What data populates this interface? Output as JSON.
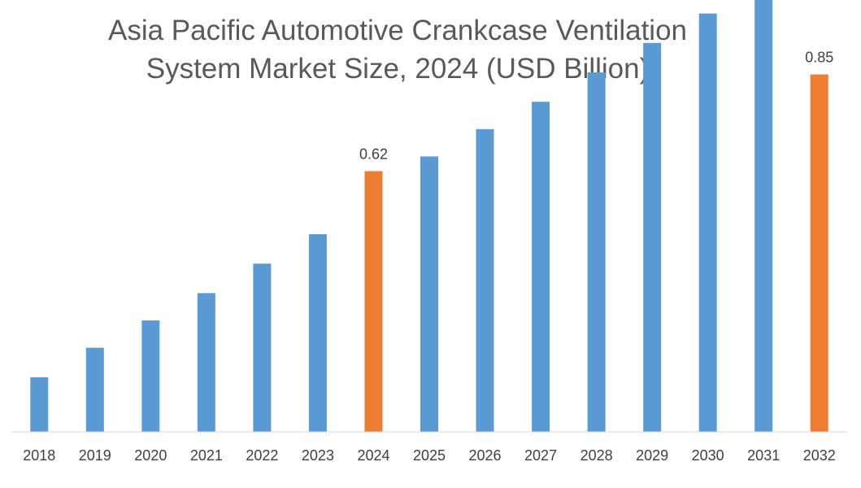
{
  "chart_data": {
    "type": "bar",
    "title_lines": [
      "Asia Pacific Automotive Crankcase Ventilation",
      "System Market Size, 2024 (USD Billion)"
    ],
    "categories": [
      "2018",
      "2019",
      "2020",
      "2021",
      "2022",
      "2023",
      "2024",
      "2025",
      "2026",
      "2027",
      "2028",
      "2029",
      "2030",
      "2031",
      "2032"
    ],
    "values": [
      0.13,
      0.2,
      0.265,
      0.33,
      0.4,
      0.47,
      0.62,
      0.655,
      0.72,
      0.785,
      0.855,
      0.925,
      0.995,
      1.065,
      0.85
    ],
    "data_labels": {
      "6": "0.62",
      "14": "0.85"
    },
    "highlight_indices": [
      6,
      14
    ],
    "colors": {
      "default": "#5b9bd5",
      "highlight": "#ed7d31"
    },
    "xlabel": "",
    "ylabel": "",
    "grid": false,
    "legend": "none"
  }
}
